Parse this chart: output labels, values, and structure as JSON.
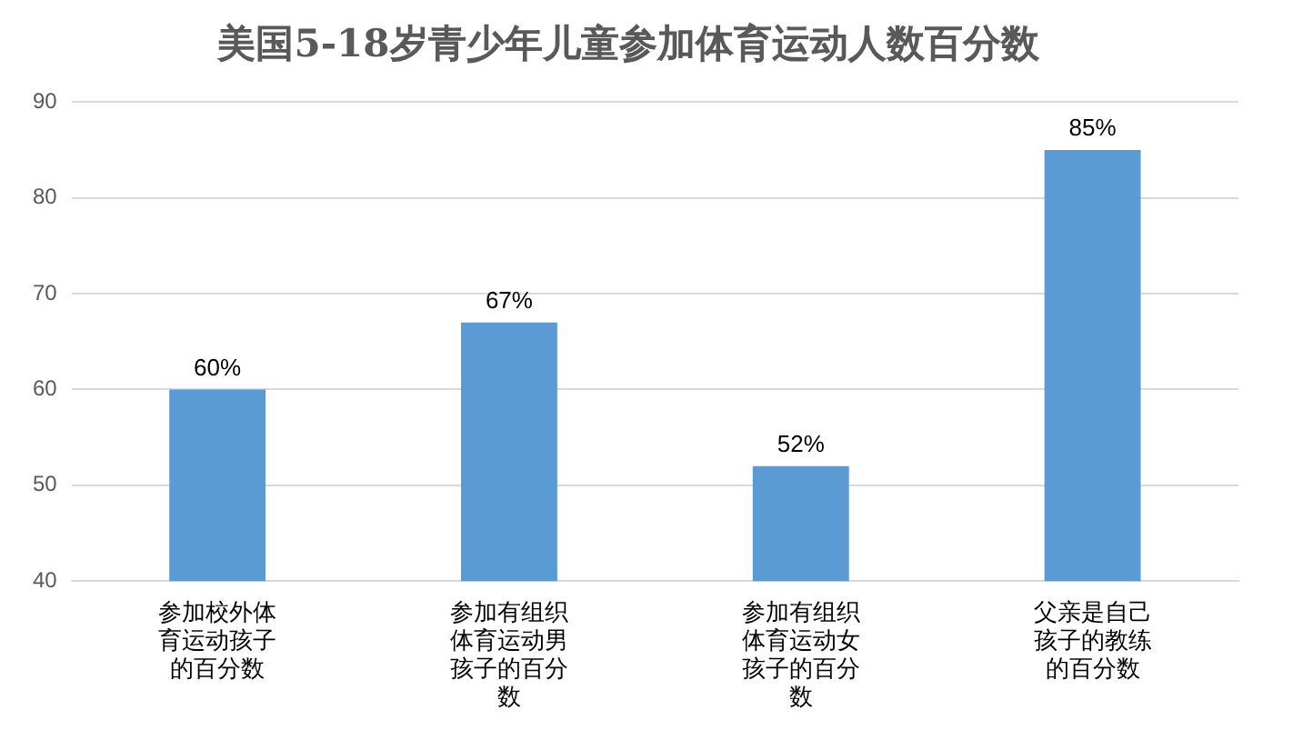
{
  "chart_data": {
    "type": "bar",
    "title": "美国5-18岁青少年儿童参加体育运动人数百分数",
    "categories": [
      "参加校外体育运动孩子的百分数",
      "参加有组织体育运动男孩子的百分数",
      "参加有组织体育运动女孩子的百分数",
      "父亲是自己孩子的教练的百分数"
    ],
    "values": [
      60,
      67,
      52,
      85
    ],
    "value_labels": [
      "60%",
      "67%",
      "52%",
      "85%"
    ],
    "color": "#5b9bd5",
    "ylim": [
      40,
      90
    ],
    "yticks": [
      40,
      50,
      60,
      70,
      80,
      90
    ],
    "grid": "y",
    "legend": false
  }
}
